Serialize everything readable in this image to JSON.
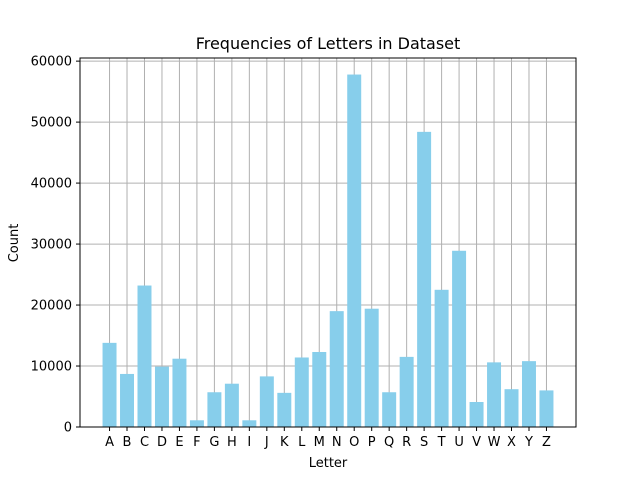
{
  "chart_data": {
    "type": "bar",
    "title": "Frequencies of Letters in Dataset",
    "xlabel": "Letter",
    "ylabel": "Count",
    "categories": [
      "A",
      "B",
      "C",
      "D",
      "E",
      "F",
      "G",
      "H",
      "I",
      "J",
      "K",
      "L",
      "M",
      "N",
      "O",
      "P",
      "Q",
      "R",
      "S",
      "T",
      "U",
      "V",
      "W",
      "X",
      "Y",
      "Z"
    ],
    "values": [
      13800,
      8700,
      23200,
      9900,
      11200,
      1100,
      5700,
      7100,
      1100,
      8300,
      5600,
      11400,
      12300,
      19000,
      57800,
      19400,
      5700,
      11500,
      48400,
      22500,
      28900,
      4100,
      10600,
      6200,
      10800,
      6000
    ],
    "ylim": [
      0,
      60000
    ],
    "yticks": [
      0,
      10000,
      20000,
      30000,
      40000,
      50000,
      60000
    ],
    "grid": true,
    "legend": "none",
    "bar_color": "#87CEEB"
  }
}
